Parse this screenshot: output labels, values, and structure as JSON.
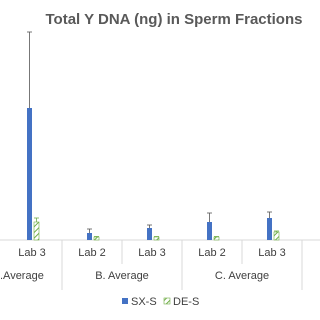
{
  "chart_data": {
    "type": "bar",
    "title": "Total Y DNA (ng) in Sperm Fractions",
    "categories": [
      "Lab 3",
      "Lab 2",
      "Lab 3",
      "Lab 2",
      "Lab 3"
    ],
    "groups": [
      {
        "name": ".Average",
        "size": 1
      },
      {
        "name": "B. Average",
        "size": 2
      },
      {
        "name": "C. Average",
        "size": 2
      }
    ],
    "series": [
      {
        "name": "SX-S",
        "color": "#4472c4",
        "pattern": "solid",
        "values": [
          132,
          7,
          12,
          18,
          22
        ],
        "errors": [
          76,
          4,
          3,
          9,
          6
        ]
      },
      {
        "name": "DE-S",
        "color": "#70ad47",
        "pattern": "hatch",
        "values": [
          18,
          3,
          3,
          3,
          8
        ],
        "errors": [
          4,
          0.5,
          0.5,
          0.5,
          1
        ]
      }
    ],
    "ylim": [
      0,
      210
    ],
    "legend": "bottom"
  }
}
